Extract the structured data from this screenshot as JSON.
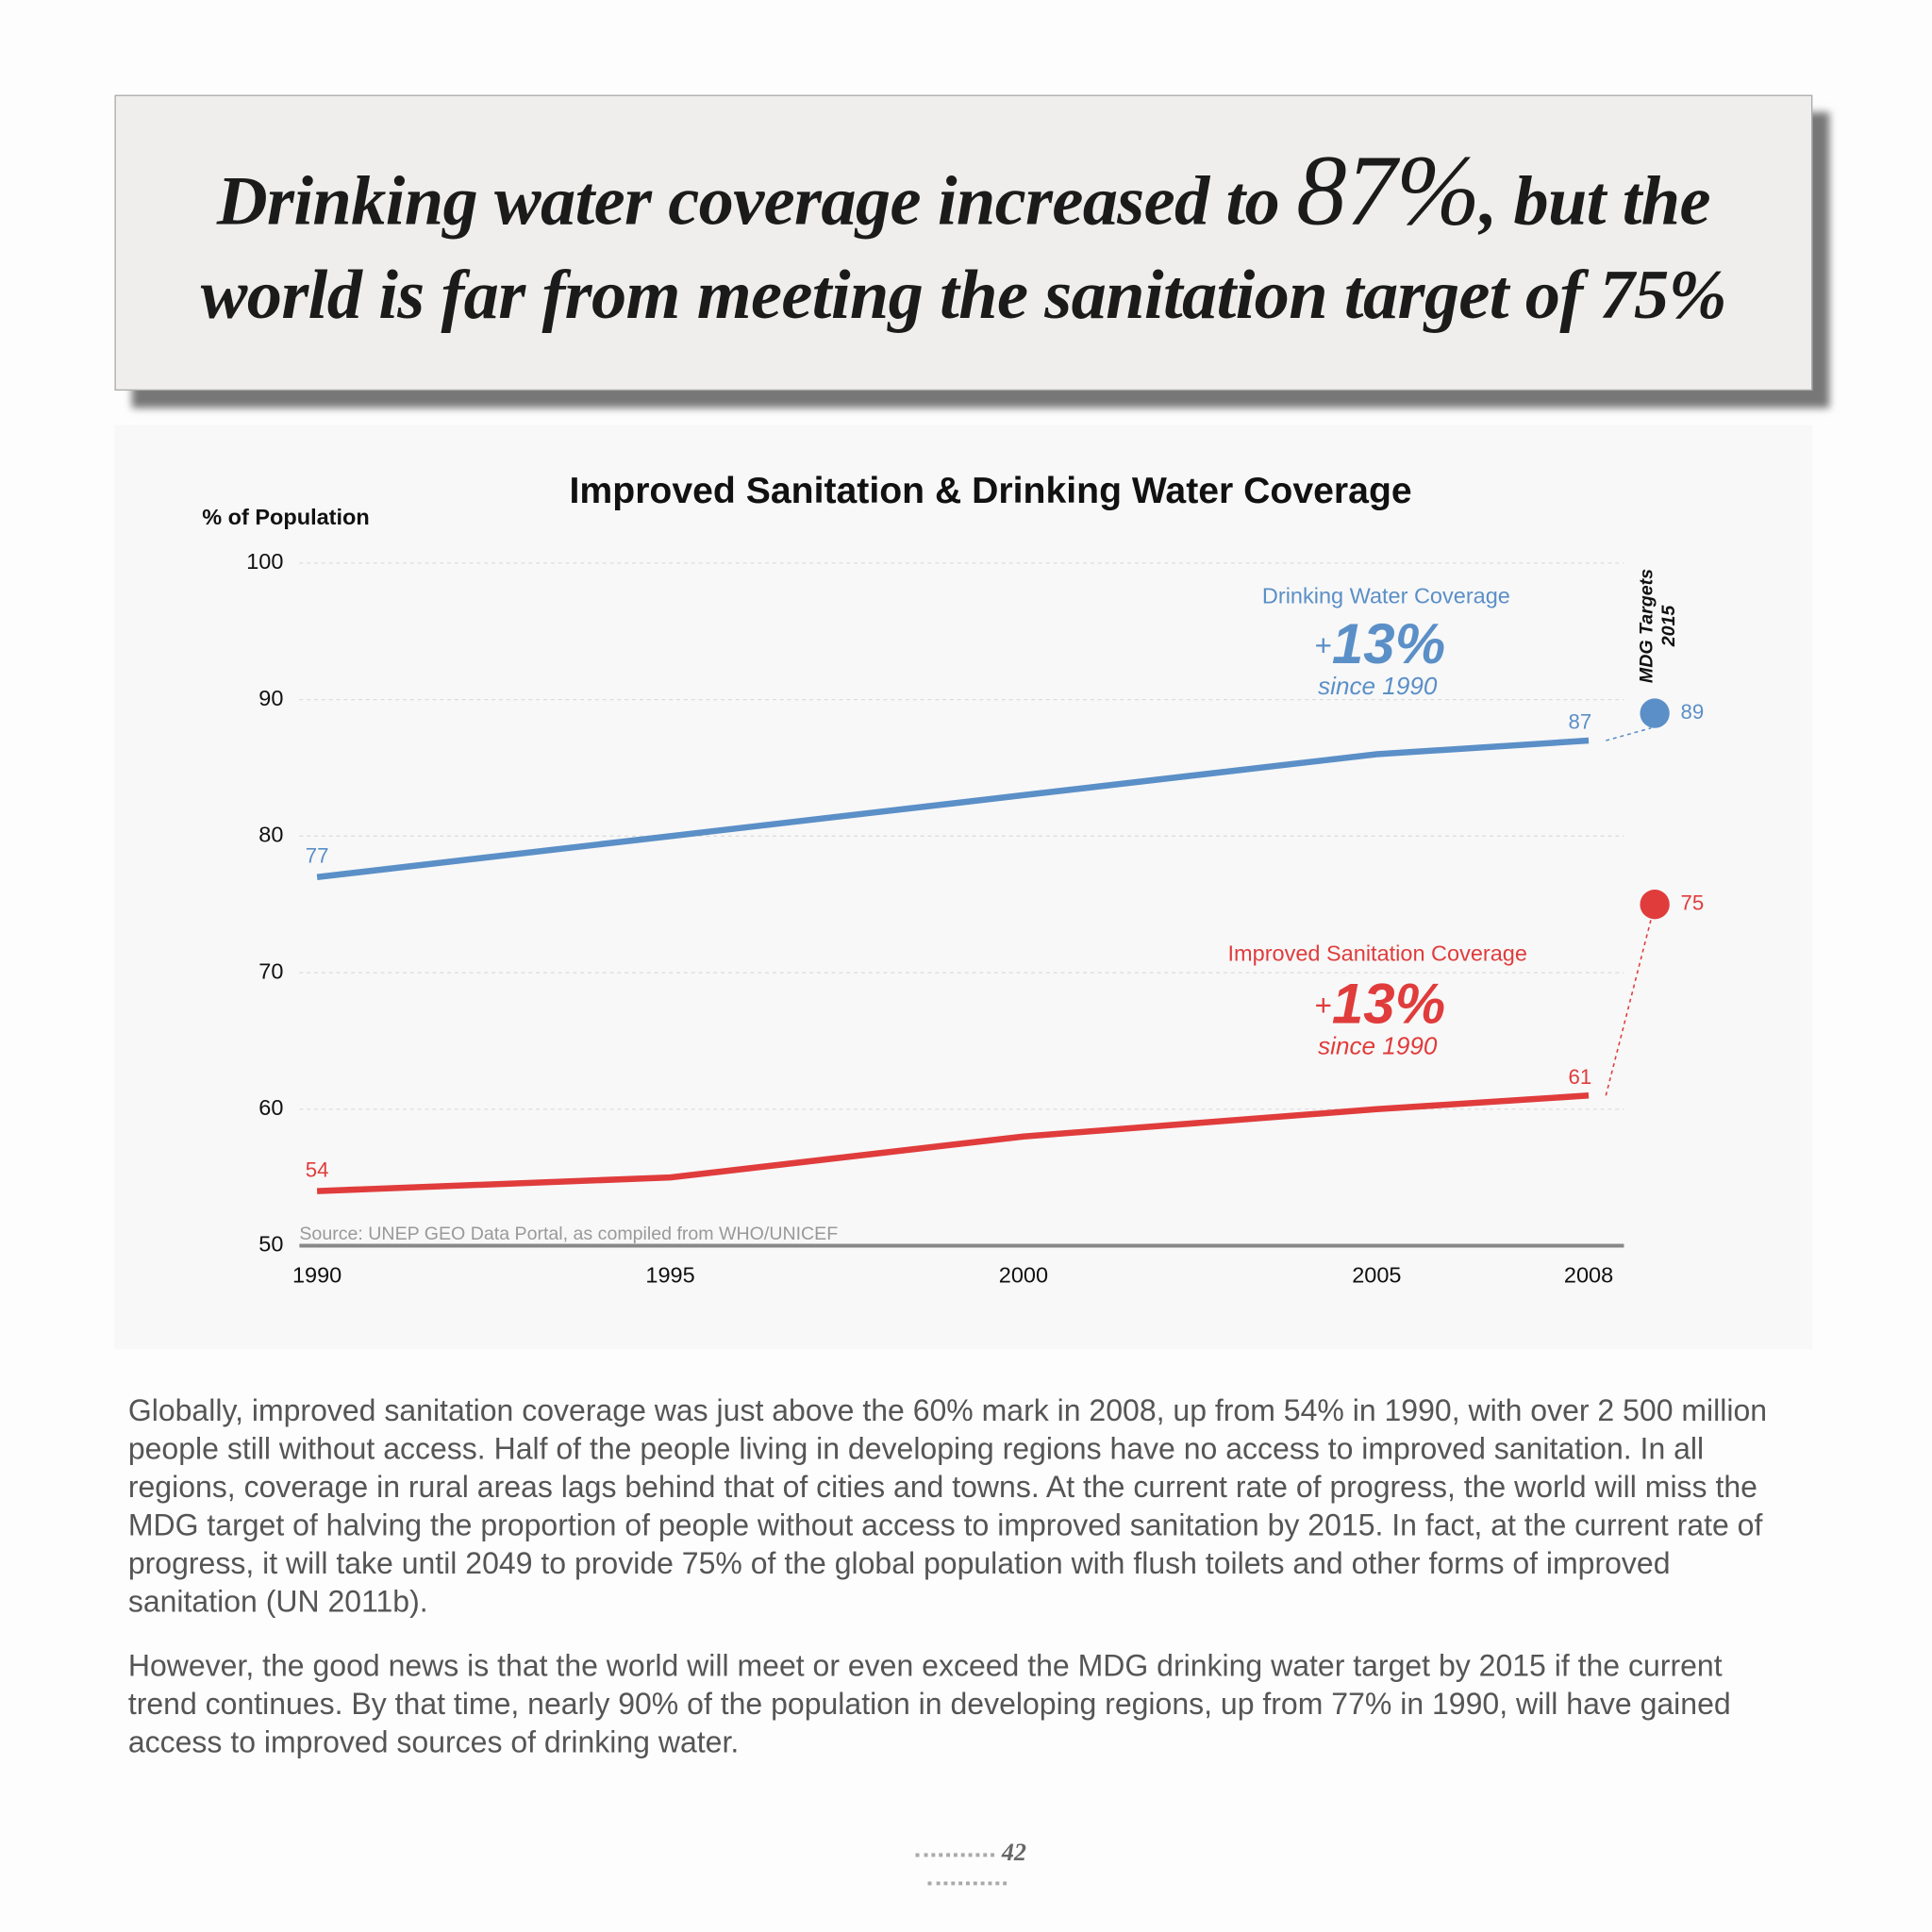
{
  "headline": {
    "before": "Drinking water coverage increased to",
    "highlight": "87%",
    "after": ", but the world is far from meeting the sanitation target of 75%"
  },
  "chart_data": {
    "type": "line",
    "title": "Improved Sanitation & Drinking Water Coverage",
    "y_label": "% of Population",
    "source": "Source: UNEP GEO Data Portal, as compiled from WHO/UNICEF",
    "x": [
      1990,
      1995,
      2000,
      2005,
      2008
    ],
    "xlim": [
      1989.75,
      2008.5
    ],
    "xticks": [
      1990,
      1995,
      2000,
      2005,
      2008
    ],
    "ylim": [
      50,
      100
    ],
    "yticks": [
      50,
      60,
      70,
      80,
      90,
      100
    ],
    "grid": true,
    "targets_label": [
      "MDG Targets",
      "2015"
    ],
    "series": [
      {
        "name": "Drinking Water Coverage",
        "color": "#5b8fc7",
        "values": [
          77,
          80,
          83,
          86,
          87
        ],
        "target": 89,
        "sign": "+",
        "change": "13%",
        "since": "since 1990"
      },
      {
        "name": "Improved Sanitation Coverage",
        "color": "#e03c3c",
        "values": [
          54,
          55,
          58,
          60,
          61
        ],
        "target": 75,
        "sign": "+",
        "change": "13%",
        "since": "since 1990"
      }
    ]
  },
  "paragraphs": [
    "Globally, improved sanitation coverage was just above the 60% mark in 2008, up from 54% in 1990, with over 2 500 million people still without access. Half of the people living in developing regions have no access to improved sanitation. In all regions, coverage in rural areas lags behind that of cities and towns. At the current rate of progress, the world will miss the MDG target of halving the proportion of people without access to improved sanitation by 2015. In fact, at the current rate of progress, it will take until 2049 to provide 75% of the global population with flush toilets and other forms of improved sanitation (UN 2011b).",
    "However, the good news is that the world will meet or even exceed the MDG drinking water target by 2015 if the current trend continues. By that time, nearly 90% of the population in developing regions, up from 77% in 1990, will have gained access to improved sources of drinking water."
  ],
  "page_number": "42"
}
